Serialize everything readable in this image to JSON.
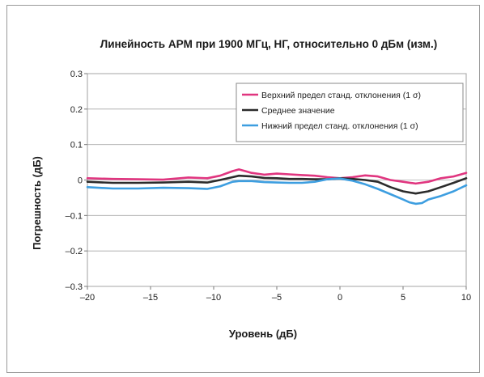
{
  "chart_data": {
    "type": "line",
    "title": "Линейность APM при 1900 МГц, НГ, относительно 0 дБм (изм.)",
    "xlabel": "Уровень (дБ)",
    "ylabel": "Погрешность (дБ)",
    "xlim": [
      -20,
      10
    ],
    "ylim": [
      -0.3,
      0.3
    ],
    "grid": true,
    "legend_position": "top-right",
    "x_ticks": [
      -20,
      -15,
      -10,
      -5,
      0,
      5,
      10
    ],
    "x_tick_labels": [
      "–20",
      "–15",
      "–10",
      "–5",
      "0",
      "5",
      "10"
    ],
    "y_ticks": [
      -0.3,
      -0.2,
      -0.1,
      0,
      0.1,
      0.2,
      0.3
    ],
    "y_tick_labels": [
      "–0.3",
      "–0.2",
      "–0.1",
      "0",
      "0.1",
      "0.2",
      "0.3"
    ],
    "series": [
      {
        "name": "Верхний предел станд. отклонения (1 σ)",
        "color": "#e0357f",
        "x": [
          -20,
          -18,
          -16,
          -14,
          -12,
          -10.5,
          -9.5,
          -8.5,
          -8,
          -7.5,
          -7,
          -6,
          -5,
          -4,
          -3,
          -2,
          -1,
          0,
          1,
          2,
          3,
          4,
          5,
          6,
          7,
          8,
          9,
          10
        ],
        "y": [
          0.005,
          0.003,
          0.002,
          0.001,
          0.007,
          0.005,
          0.012,
          0.025,
          0.03,
          0.025,
          0.02,
          0.015,
          0.018,
          0.016,
          0.014,
          0.012,
          0.008,
          0.005,
          0.008,
          0.013,
          0.01,
          0.0,
          -0.005,
          -0.01,
          -0.005,
          0.005,
          0.01,
          0.02
        ]
      },
      {
        "name": "Среднее значение",
        "color": "#2b2b2b",
        "x": [
          -20,
          -18,
          -16,
          -14,
          -12,
          -10.5,
          -9.5,
          -8.5,
          -8,
          -7,
          -6,
          -5,
          -4,
          -3,
          -2,
          -1,
          0,
          1,
          2,
          3,
          4,
          5,
          6,
          7,
          8,
          9,
          10
        ],
        "y": [
          -0.005,
          -0.008,
          -0.008,
          -0.007,
          -0.005,
          -0.007,
          0.0,
          0.008,
          0.012,
          0.01,
          0.006,
          0.005,
          0.003,
          0.003,
          0.002,
          0.002,
          0.005,
          0.003,
          0.0,
          -0.005,
          -0.02,
          -0.032,
          -0.038,
          -0.032,
          -0.02,
          -0.008,
          0.005
        ]
      },
      {
        "name": "Нижний предел станд. отклонения (1 σ)",
        "color": "#3d9ee0",
        "x": [
          -20,
          -18,
          -16,
          -14,
          -12,
          -10.5,
          -9.5,
          -8.5,
          -8,
          -7,
          -6,
          -5,
          -4,
          -3,
          -2,
          -1,
          0,
          1,
          2,
          3,
          4,
          5,
          5.5,
          6,
          6.5,
          7,
          8,
          9,
          10
        ],
        "y": [
          -0.02,
          -0.024,
          -0.024,
          -0.022,
          -0.023,
          -0.025,
          -0.018,
          -0.005,
          -0.003,
          -0.003,
          -0.006,
          -0.007,
          -0.008,
          -0.008,
          -0.005,
          0.002,
          0.004,
          -0.002,
          -0.012,
          -0.025,
          -0.04,
          -0.055,
          -0.063,
          -0.067,
          -0.065,
          -0.055,
          -0.045,
          -0.032,
          -0.015
        ]
      }
    ]
  }
}
